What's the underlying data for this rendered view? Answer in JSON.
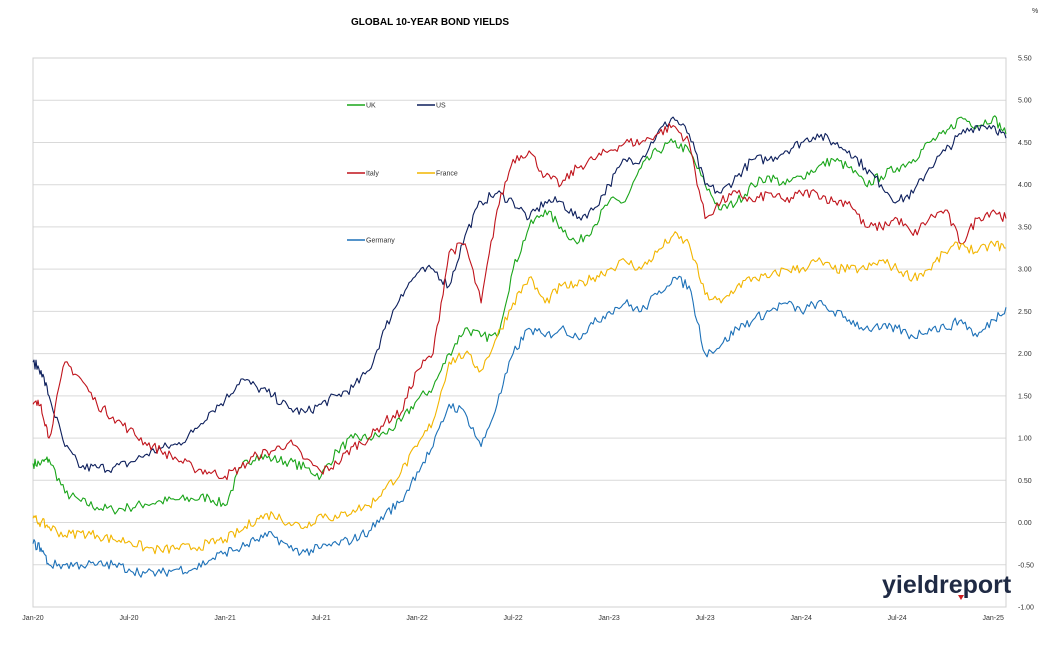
{
  "chart_data": {
    "type": "line",
    "title": "GLOBAL 10-YEAR BOND YIELDS",
    "unit_label": "%",
    "x_ticks": [
      "Jan-20",
      "Jul-20",
      "Jan-21",
      "Jul-21",
      "Jan-22",
      "Jul-22",
      "Jan-23",
      "Jul-23",
      "Jan-24",
      "Jul-24",
      "Jan-25"
    ],
    "x_range": [
      "Jan-20",
      "Jan-25"
    ],
    "y_ticks": [
      "5.50",
      "5.00",
      "4.50",
      "4.00",
      "3.50",
      "3.00",
      "2.50",
      "2.00",
      "1.50",
      "1.00",
      "0.50",
      "0.00",
      "-0.50",
      "-1.00"
    ],
    "ylim": [
      -1.0,
      5.5
    ],
    "y_axis_position": "right",
    "grid": "horizontal",
    "legend_position": "top-left inside plot",
    "series": [
      {
        "name": "UK",
        "color": "#1aa51a",
        "x": [
          0,
          0.5,
          1,
          2,
          3,
          4,
          5,
          6,
          7,
          8,
          9,
          10,
          11,
          12,
          13,
          14,
          15,
          16,
          17,
          18,
          19,
          20,
          21,
          22,
          23,
          24,
          25,
          26,
          27,
          28,
          29,
          30,
          31,
          32,
          33,
          34,
          35,
          36,
          37,
          38,
          39,
          40,
          41,
          42,
          43,
          44,
          45,
          46,
          47,
          48,
          49,
          50,
          51,
          52,
          53,
          54,
          55,
          56,
          57,
          58,
          59,
          60,
          60.8
        ],
        "y": [
          0.7,
          0.7,
          0.75,
          0.35,
          0.25,
          0.18,
          0.15,
          0.18,
          0.22,
          0.25,
          0.27,
          0.28,
          0.3,
          0.2,
          0.65,
          0.8,
          0.75,
          0.72,
          0.65,
          0.55,
          0.85,
          1.0,
          1.0,
          1.05,
          1.2,
          1.45,
          1.6,
          2.0,
          2.3,
          2.2,
          2.2,
          3.0,
          3.5,
          3.7,
          3.5,
          3.3,
          3.5,
          3.8,
          3.8,
          4.2,
          4.4,
          4.5,
          4.4,
          4.0,
          3.7,
          3.8,
          4.0,
          4.1,
          4.0,
          4.1,
          4.2,
          4.3,
          4.2,
          4.0,
          4.1,
          4.2,
          4.3,
          4.5,
          4.6,
          4.8,
          4.7,
          4.8,
          4.6
        ]
      },
      {
        "name": "US",
        "color": "#0d1f5c",
        "x": [
          0,
          0.5,
          1,
          2,
          3,
          4,
          5,
          6,
          7,
          8,
          9,
          10,
          11,
          12,
          13,
          14,
          15,
          16,
          17,
          18,
          19,
          20,
          21,
          22,
          23,
          24,
          25,
          26,
          27,
          28,
          29,
          30,
          31,
          32,
          33,
          34,
          35,
          36,
          37,
          38,
          39,
          40,
          41,
          42,
          43,
          44,
          45,
          46,
          47,
          48,
          49,
          50,
          51,
          52,
          53,
          54,
          55,
          56,
          57,
          58,
          59,
          60,
          60.8
        ],
        "y": [
          1.9,
          1.8,
          1.5,
          0.9,
          0.65,
          0.65,
          0.65,
          0.7,
          0.8,
          0.88,
          0.92,
          1.07,
          1.3,
          1.45,
          1.7,
          1.6,
          1.5,
          1.35,
          1.3,
          1.4,
          1.5,
          1.6,
          1.8,
          2.3,
          2.7,
          2.95,
          3.0,
          2.8,
          3.4,
          3.8,
          3.9,
          3.8,
          3.6,
          3.8,
          3.8,
          3.6,
          3.7,
          4.0,
          4.3,
          4.3,
          4.6,
          4.8,
          4.6,
          4.0,
          3.9,
          4.1,
          4.3,
          4.3,
          4.4,
          4.5,
          4.6,
          4.5,
          4.4,
          4.2,
          4.0,
          3.8,
          3.9,
          4.2,
          4.4,
          4.6,
          4.7,
          4.7,
          4.55
        ]
      },
      {
        "name": "Italy",
        "color": "#c0141c",
        "x": [
          0,
          0.5,
          1,
          2,
          3,
          4,
          5,
          6,
          7,
          8,
          9,
          10,
          11,
          12,
          13,
          14,
          15,
          16,
          17,
          18,
          19,
          20,
          21,
          22,
          23,
          24,
          25,
          26,
          27,
          28,
          29,
          30,
          31,
          32,
          33,
          34,
          35,
          36,
          37,
          38,
          39,
          40,
          41,
          42,
          43,
          44,
          45,
          46,
          47,
          48,
          49,
          50,
          51,
          52,
          53,
          54,
          55,
          56,
          57,
          58,
          59,
          60,
          60.8
        ],
        "y": [
          1.4,
          1.4,
          1.0,
          1.9,
          1.7,
          1.4,
          1.25,
          1.1,
          0.95,
          0.85,
          0.75,
          0.65,
          0.6,
          0.55,
          0.65,
          0.8,
          0.85,
          0.95,
          0.75,
          0.6,
          0.7,
          0.9,
          1.0,
          1.2,
          1.3,
          1.8,
          2.0,
          3.2,
          3.3,
          2.6,
          3.7,
          4.3,
          4.4,
          4.1,
          4.0,
          4.2,
          4.3,
          4.4,
          4.5,
          4.5,
          4.6,
          4.7,
          4.5,
          3.6,
          3.8,
          3.9,
          3.8,
          3.9,
          3.8,
          3.9,
          3.9,
          3.8,
          3.8,
          3.5,
          3.5,
          3.6,
          3.4,
          3.6,
          3.7,
          3.3,
          3.6,
          3.7,
          3.6
        ]
      },
      {
        "name": "France",
        "color": "#f2b500",
        "x": [
          0,
          0.5,
          1,
          2,
          3,
          4,
          5,
          6,
          7,
          8,
          9,
          10,
          11,
          12,
          13,
          14,
          15,
          16,
          17,
          18,
          19,
          20,
          21,
          22,
          23,
          24,
          25,
          26,
          27,
          28,
          29,
          30,
          31,
          32,
          33,
          34,
          35,
          36,
          37,
          38,
          39,
          40,
          41,
          42,
          43,
          44,
          45,
          46,
          47,
          48,
          49,
          50,
          51,
          52,
          53,
          54,
          55,
          56,
          57,
          58,
          59,
          60,
          60.8
        ],
        "y": [
          0.05,
          0.0,
          -0.05,
          -0.15,
          -0.12,
          -0.15,
          -0.2,
          -0.22,
          -0.3,
          -0.33,
          -0.3,
          -0.3,
          -0.25,
          -0.2,
          -0.1,
          0.05,
          0.1,
          0.0,
          -0.05,
          0.1,
          0.05,
          0.15,
          0.2,
          0.4,
          0.6,
          0.9,
          1.2,
          1.9,
          2.0,
          1.8,
          2.2,
          2.6,
          2.9,
          2.6,
          2.8,
          2.8,
          2.9,
          3.0,
          3.1,
          3.0,
          3.2,
          3.4,
          3.3,
          2.7,
          2.6,
          2.8,
          2.9,
          2.9,
          3.0,
          3.0,
          3.1,
          3.0,
          3.0,
          3.0,
          3.1,
          3.0,
          2.9,
          3.0,
          3.2,
          3.3,
          3.2,
          3.3,
          3.25
        ]
      },
      {
        "name": "Germany",
        "color": "#1d71b8",
        "x": [
          0,
          0.5,
          1,
          2,
          3,
          4,
          5,
          6,
          7,
          8,
          9,
          10,
          11,
          12,
          13,
          14,
          15,
          16,
          17,
          18,
          19,
          20,
          21,
          22,
          23,
          24,
          25,
          26,
          27,
          28,
          29,
          30,
          31,
          32,
          33,
          34,
          35,
          36,
          37,
          38,
          39,
          40,
          41,
          42,
          43,
          44,
          45,
          46,
          47,
          48,
          49,
          50,
          51,
          52,
          53,
          54,
          55,
          56,
          57,
          58,
          59,
          60,
          60.8
        ],
        "y": [
          -0.25,
          -0.3,
          -0.5,
          -0.5,
          -0.5,
          -0.5,
          -0.5,
          -0.55,
          -0.6,
          -0.6,
          -0.55,
          -0.55,
          -0.45,
          -0.35,
          -0.3,
          -0.2,
          -0.15,
          -0.3,
          -0.35,
          -0.3,
          -0.25,
          -0.2,
          -0.1,
          0.1,
          0.25,
          0.6,
          0.9,
          1.4,
          1.3,
          0.9,
          1.4,
          2.0,
          2.3,
          2.2,
          2.3,
          2.2,
          2.35,
          2.5,
          2.6,
          2.5,
          2.7,
          2.9,
          2.8,
          2.0,
          2.1,
          2.3,
          2.4,
          2.5,
          2.6,
          2.5,
          2.6,
          2.5,
          2.4,
          2.3,
          2.3,
          2.3,
          2.2,
          2.3,
          2.3,
          2.4,
          2.2,
          2.4,
          2.55
        ]
      }
    ]
  },
  "logo": {
    "text": "yieldreport",
    "accent_color": "#d01c1f",
    "text_color": "#1f2a44"
  }
}
